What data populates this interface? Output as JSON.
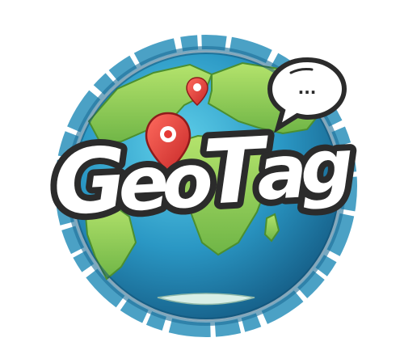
{
  "logo": {
    "wordmark": "GeoTag",
    "letters": [
      "G",
      "e",
      "o",
      "T",
      "a",
      "g"
    ]
  },
  "speech_bubble": {
    "text": "..."
  },
  "colors": {
    "ocean_light": "#3fb6d6",
    "ocean_dark": "#1d6f9f",
    "land": "#8fd15a",
    "land_dark": "#5aa63a",
    "pin_red": "#e53935",
    "text_white": "#ffffff",
    "outline_dark": "#2b2b2b"
  },
  "icons": [
    "globe-icon",
    "map-pin-icon",
    "speech-bubble-icon"
  ]
}
